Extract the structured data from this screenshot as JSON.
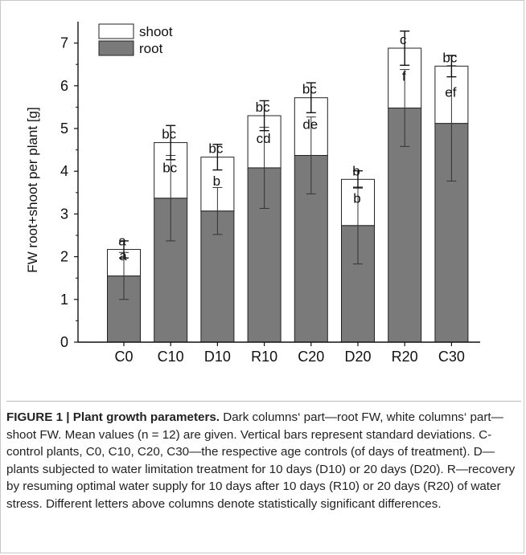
{
  "chart_data": {
    "type": "bar",
    "stacked": true,
    "ylabel": "FW root+shoot per plant [g]",
    "ylim": [
      0,
      7.5
    ],
    "yticks": [
      0,
      1,
      2,
      3,
      4,
      5,
      6,
      7
    ],
    "categories": [
      "C0",
      "C10",
      "D10",
      "R10",
      "C20",
      "D20",
      "R20",
      "C30"
    ],
    "legend_position": "top-left",
    "series": [
      {
        "name": "root",
        "color": "#7a7a7a",
        "values": [
          1.55,
          3.37,
          3.07,
          4.08,
          4.37,
          2.73,
          5.48,
          5.12
        ],
        "error": [
          0.55,
          1.0,
          0.55,
          0.95,
          0.9,
          0.9,
          0.9,
          1.35
        ],
        "letters": [
          "a",
          "bc",
          "b",
          "cd",
          "de",
          "b",
          "f",
          "ef"
        ]
      },
      {
        "name": "shoot",
        "color": "#ffffff",
        "values": [
          0.62,
          1.3,
          1.26,
          1.22,
          1.35,
          1.08,
          1.4,
          1.34
        ],
        "error": [
          0.2,
          0.4,
          0.3,
          0.35,
          0.35,
          0.2,
          0.4,
          0.25
        ],
        "letters": [
          "a",
          "bc",
          "bc",
          "bc",
          "bc",
          "b",
          "c",
          "bc"
        ]
      }
    ]
  },
  "caption": {
    "title": "FIGURE 1 | Plant growth parameters.",
    "text": " Dark columns‘ part—root FW, white columns‘ part—shoot FW. Mean values (n = 12) are given. Vertical bars represent standard deviations. C-control plants, C0, C10, C20, C30—the respective age controls (of days of treatment). D—plants subjected to water limitation treatment for 10 days (D10) or 20 days (D20). R—recovery by resuming optimal water supply for 10 days after 10 days (R10) or 20 days (R20) of water stress. Different letters above columns denote statistically significant differences."
  }
}
